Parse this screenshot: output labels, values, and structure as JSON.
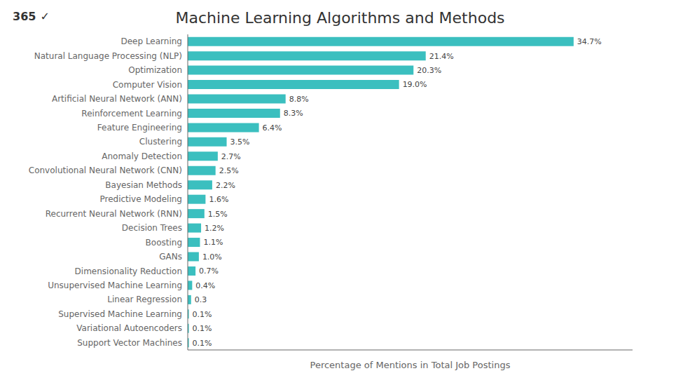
{
  "chart_data": {
    "type": "bar",
    "orientation": "horizontal",
    "title": "Machine Learning Algorithms and Methods",
    "x_label": "Percentage of Mentions in Total Job Postings",
    "annotations": [
      "365",
      "✓"
    ],
    "categories": [
      "Deep Learning",
      "Natural Language Processing (NLP)",
      "Optimization",
      "Computer Vision",
      "Artificial Neural Network (ANN)",
      "Reinforcement Learning",
      "Feature Engineering",
      "Clustering",
      "Anomaly Detection",
      "Convolutional Neural Network (CNN)",
      "Bayesian Methods",
      "Predictive Modeling",
      "Recurrent Neural Network (RNN)",
      "Decision Trees",
      "Boosting",
      "GANs",
      "Dimensionality Reduction",
      "Unsupervised Machine Learning",
      "Linear Regression",
      "Supervised Machine Learning",
      "Variational Autoencoders",
      "Support Vector Machines"
    ],
    "values": [
      34.7,
      21.4,
      20.3,
      19.0,
      8.8,
      8.3,
      6.4,
      3.5,
      2.7,
      2.5,
      2.2,
      1.6,
      1.5,
      1.2,
      1.1,
      1.0,
      0.7,
      0.4,
      0.3,
      0.1,
      0.1,
      0.1
    ],
    "value_labels": [
      "34.7%",
      "21.4%",
      "20.3%",
      "19.0%",
      "8.8%",
      "8.3%",
      "6.4%",
      "3.5%",
      "2.7%",
      "2.5%",
      "2.2%",
      "1.6%",
      "1.5%",
      "1.2%",
      "1.1%",
      "1.0%",
      "0.7%",
      "0.4%",
      "0.3",
      "0.1%",
      "0.1%",
      "0.1%"
    ],
    "color": "#3bbfbf",
    "xlim": [
      0,
      40
    ],
    "grid": false,
    "data_labels": true,
    "tick_labels": "y"
  }
}
